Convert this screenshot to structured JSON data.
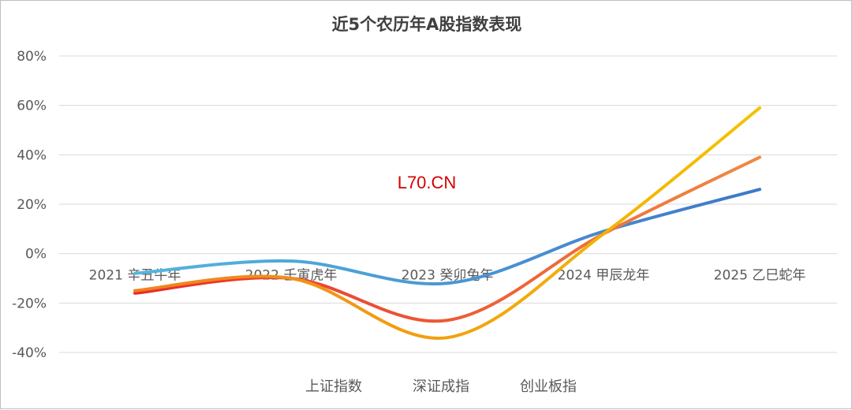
{
  "chart_data": {
    "type": "line",
    "title": "近5个农历年A股指数表现",
    "categories": [
      "2021 辛丑牛年",
      "2022 壬寅虎年",
      "2023 癸卯兔年",
      "2024 甲辰龙年",
      "2025 乙巳蛇年"
    ],
    "ylim": [
      -40,
      80
    ],
    "yticks": [
      80,
      60,
      40,
      20,
      0,
      -20,
      -40
    ],
    "ytick_labels": [
      "80%",
      "60%",
      "40%",
      "20%",
      "0%",
      "-20%",
      "-40%"
    ],
    "grid": true,
    "legend_position": "bottom",
    "series": [
      {
        "name": "上证指数",
        "values": [
          -8,
          -3,
          -12,
          9,
          26
        ],
        "color": "#4f9fd8"
      },
      {
        "name": "深证成指",
        "values": [
          -16,
          -10,
          -27,
          8,
          39
        ],
        "color": "#ed7d31"
      },
      {
        "name": "创业板指",
        "values": [
          -15,
          -10,
          -34,
          8,
          59
        ],
        "color": "#f2be00"
      }
    ],
    "watermark": "L70.CN"
  }
}
